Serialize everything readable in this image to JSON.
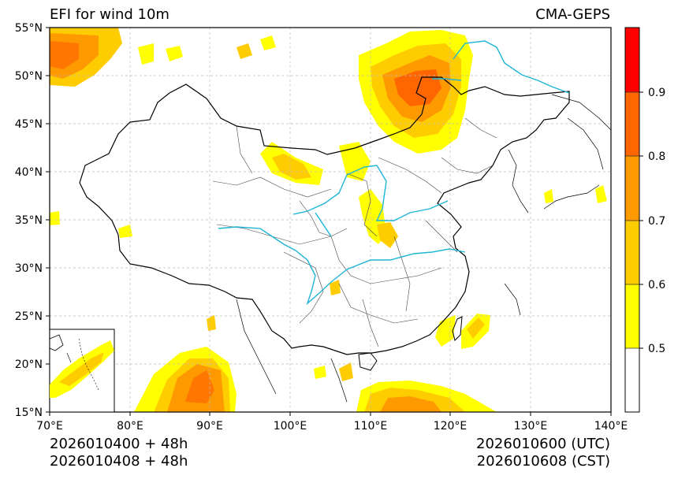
{
  "map": {
    "title_left": "EFI for wind 10m",
    "title_right": "CMA-GEPS",
    "lon_range": [
      70,
      140
    ],
    "lat_range": [
      15,
      55
    ],
    "lat_labels": [
      "55°N",
      "50°N",
      "45°N",
      "40°N",
      "35°N",
      "30°N",
      "25°N",
      "20°N",
      "15°N"
    ],
    "lon_labels": [
      "70°E",
      "80°E",
      "90°E",
      "100°E",
      "110°E",
      "120°E",
      "130°E",
      "140°E"
    ],
    "init_utc": "2026010400 + 48h",
    "init_cst": "2026010408 + 48h",
    "valid_utc": "2026010600 (UTC)",
    "valid_cst": "2026010608 (CST)"
  },
  "colorbar": {
    "levels": [
      "0.5",
      "0.6",
      "0.7",
      "0.8",
      "0.9"
    ],
    "colors": [
      "#ffffff",
      "#ffff00",
      "#ffcc00",
      "#ff9900",
      "#ff6600",
      "#ff0000"
    ]
  },
  "colors": {
    "river": "#1fb5d6",
    "border": "#000000",
    "grid": "#bbbbbb"
  }
}
